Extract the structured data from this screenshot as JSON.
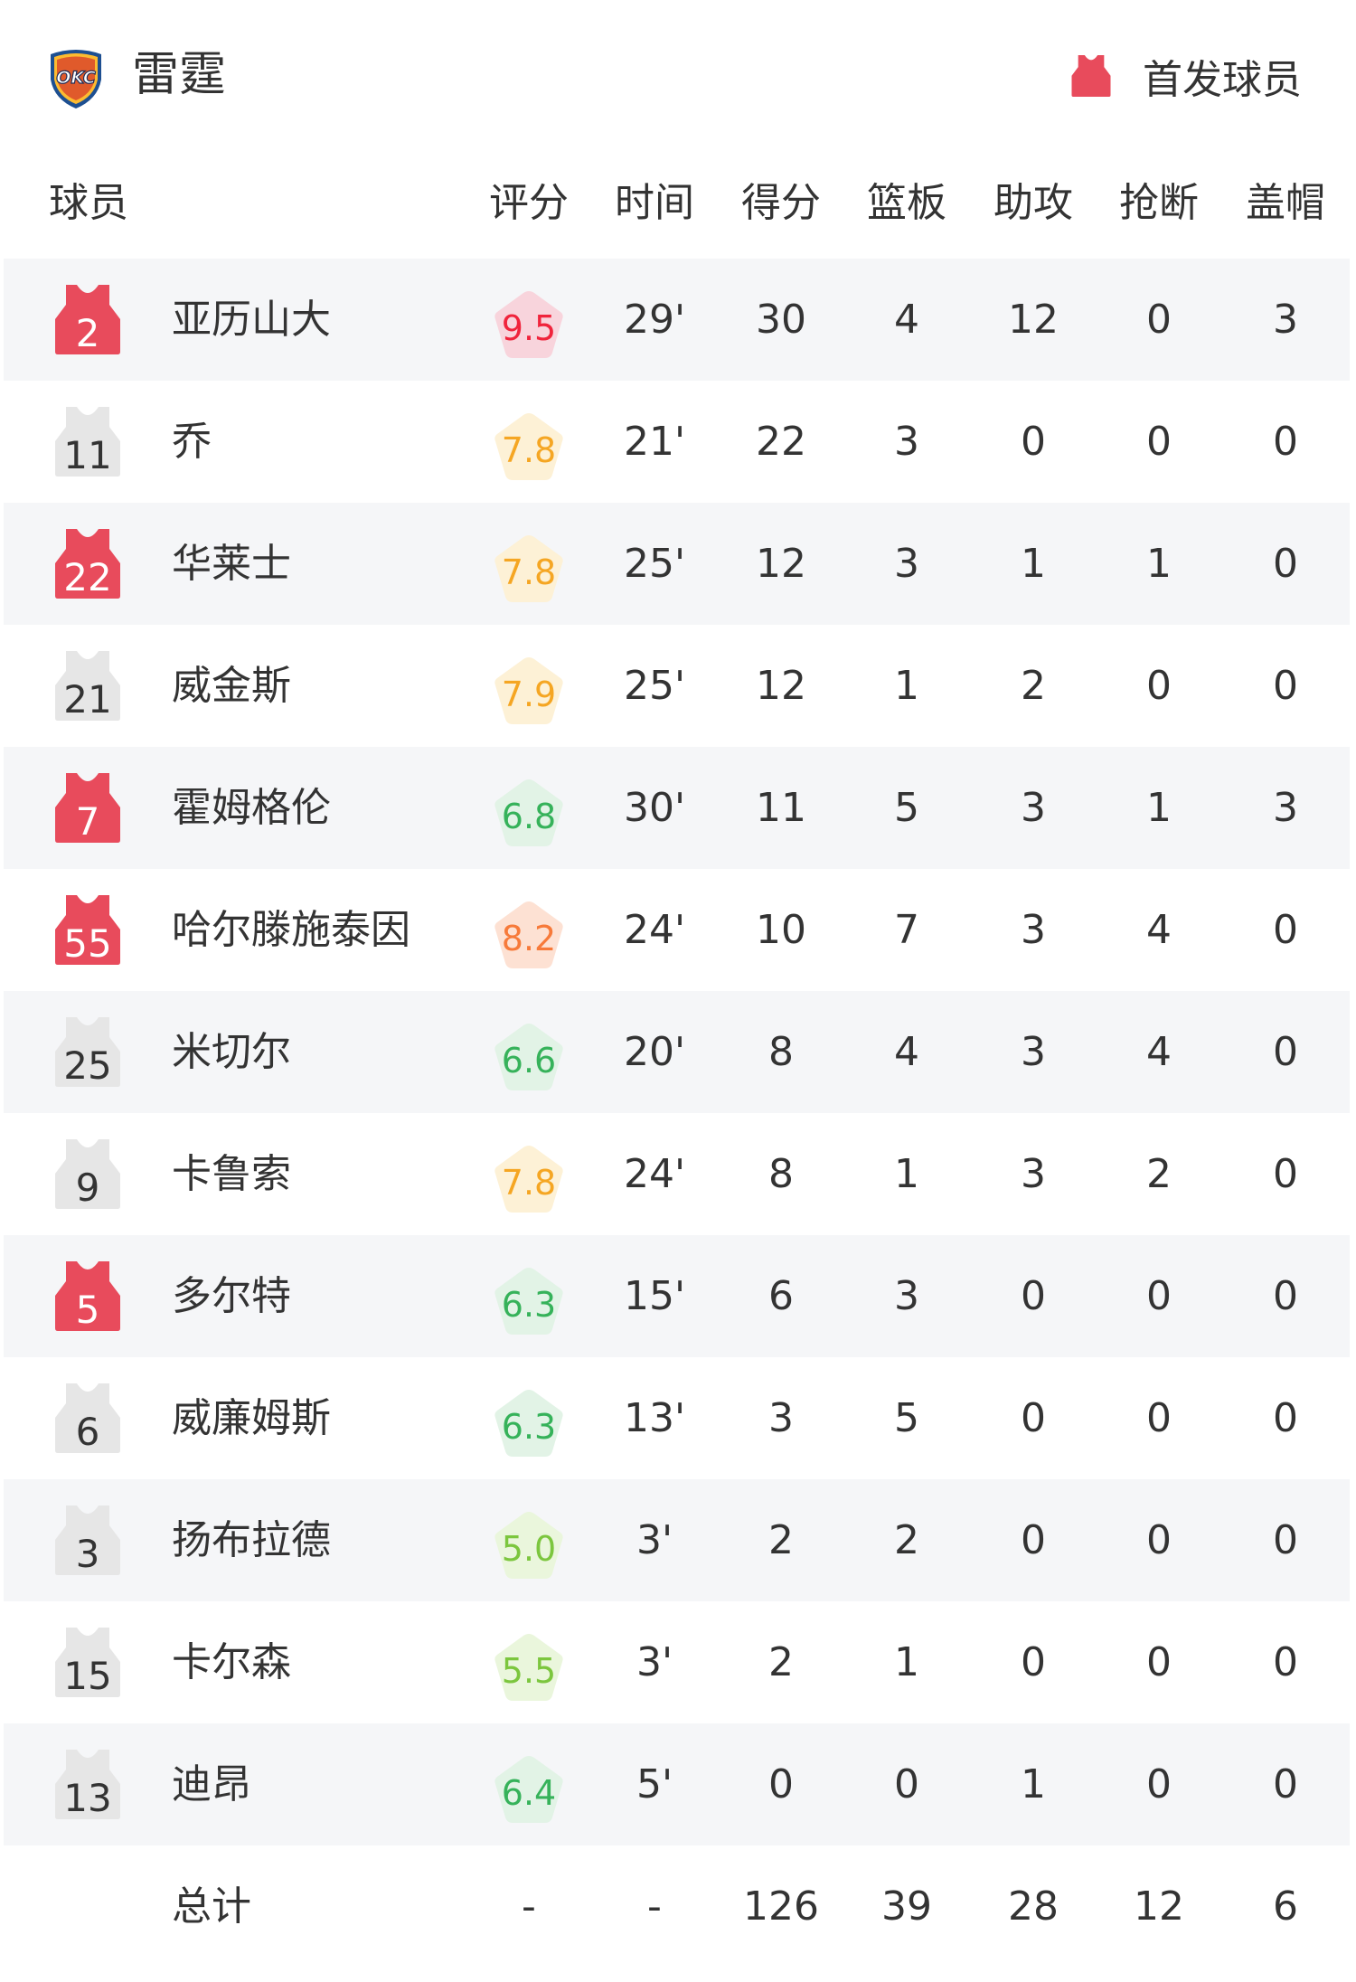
{
  "header": {
    "team_name": "雷霆",
    "logo_text": "OKC",
    "legend_label": "首发球员",
    "starter_color": "#e84b5c",
    "bench_color": "#e6e6e6"
  },
  "columns": [
    "球员",
    "评分",
    "时间",
    "得分",
    "篮板",
    "助攻",
    "抢断",
    "盖帽"
  ],
  "players": [
    {
      "num": "2",
      "name": "亚历山大",
      "rating": "9.5",
      "time": "29'",
      "pts": "30",
      "reb": "4",
      "ast": "12",
      "stl": "0",
      "blk": "3",
      "starter": true
    },
    {
      "num": "11",
      "name": "乔",
      "rating": "7.8",
      "time": "21'",
      "pts": "22",
      "reb": "3",
      "ast": "0",
      "stl": "0",
      "blk": "0",
      "starter": false
    },
    {
      "num": "22",
      "name": "华莱士",
      "rating": "7.8",
      "time": "25'",
      "pts": "12",
      "reb": "3",
      "ast": "1",
      "stl": "1",
      "blk": "0",
      "starter": true
    },
    {
      "num": "21",
      "name": "威金斯",
      "rating": "7.9",
      "time": "25'",
      "pts": "12",
      "reb": "1",
      "ast": "2",
      "stl": "0",
      "blk": "0",
      "starter": false
    },
    {
      "num": "7",
      "name": "霍姆格伦",
      "rating": "6.8",
      "time": "30'",
      "pts": "11",
      "reb": "5",
      "ast": "3",
      "stl": "1",
      "blk": "3",
      "starter": true
    },
    {
      "num": "55",
      "name": "哈尔滕施泰因",
      "rating": "8.2",
      "time": "24'",
      "pts": "10",
      "reb": "7",
      "ast": "3",
      "stl": "4",
      "blk": "0",
      "starter": true
    },
    {
      "num": "25",
      "name": "米切尔",
      "rating": "6.6",
      "time": "20'",
      "pts": "8",
      "reb": "4",
      "ast": "3",
      "stl": "4",
      "blk": "0",
      "starter": false
    },
    {
      "num": "9",
      "name": "卡鲁索",
      "rating": "7.8",
      "time": "24'",
      "pts": "8",
      "reb": "1",
      "ast": "3",
      "stl": "2",
      "blk": "0",
      "starter": false
    },
    {
      "num": "5",
      "name": "多尔特",
      "rating": "6.3",
      "time": "15'",
      "pts": "6",
      "reb": "3",
      "ast": "0",
      "stl": "0",
      "blk": "0",
      "starter": true
    },
    {
      "num": "6",
      "name": "威廉姆斯",
      "rating": "6.3",
      "time": "13'",
      "pts": "3",
      "reb": "5",
      "ast": "0",
      "stl": "0",
      "blk": "0",
      "starter": false
    },
    {
      "num": "3",
      "name": "扬布拉德",
      "rating": "5.0",
      "time": "3'",
      "pts": "2",
      "reb": "2",
      "ast": "0",
      "stl": "0",
      "blk": "0",
      "starter": false
    },
    {
      "num": "15",
      "name": "卡尔森",
      "rating": "5.5",
      "time": "3'",
      "pts": "2",
      "reb": "1",
      "ast": "0",
      "stl": "0",
      "blk": "0",
      "starter": false
    },
    {
      "num": "13",
      "name": "迪昂",
      "rating": "6.4",
      "time": "5'",
      "pts": "0",
      "reb": "0",
      "ast": "1",
      "stl": "0",
      "blk": "0",
      "starter": false
    }
  ],
  "totals": {
    "label": "总计",
    "rating": "-",
    "time": "-",
    "pts": "126",
    "reb": "39",
    "ast": "28",
    "stl": "12",
    "blk": "6"
  },
  "rating_colors": {
    "9": {
      "bg": "#f8d4dc",
      "fg": "#f0243c"
    },
    "8": {
      "bg": "#fde1d3",
      "fg": "#f77a3a"
    },
    "7": {
      "bg": "#fdf1d6",
      "fg": "#f5a623"
    },
    "6": {
      "bg": "#e2f3e6",
      "fg": "#36b25a"
    },
    "5": {
      "bg": "#eaf6dc",
      "fg": "#7cc63e"
    }
  }
}
